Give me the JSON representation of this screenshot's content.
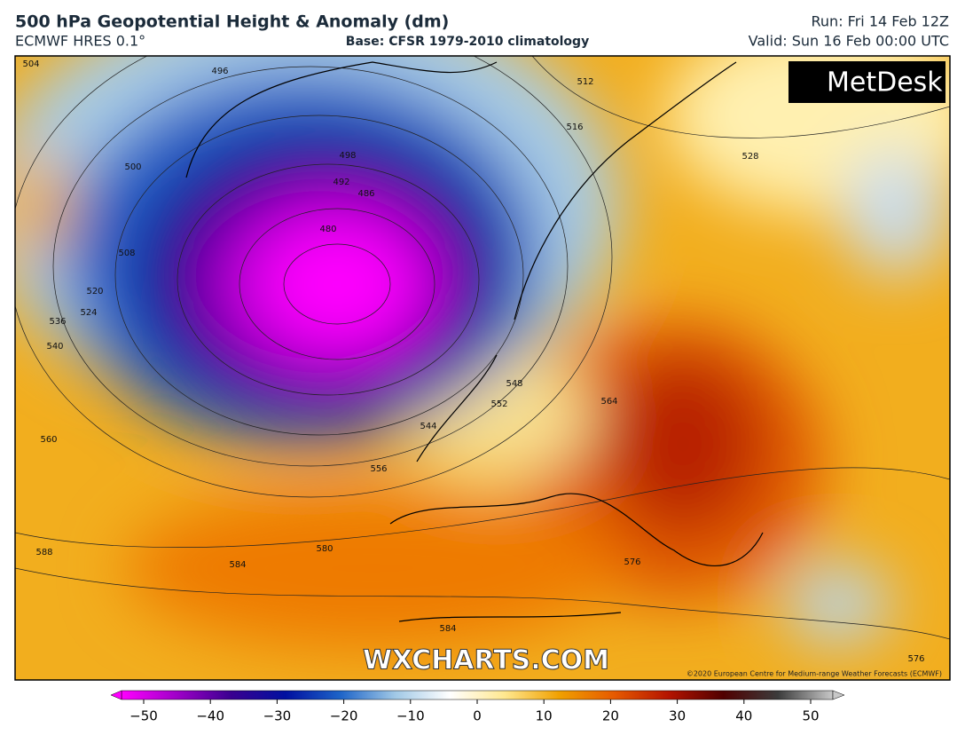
{
  "header": {
    "title": "500 hPa Geopotential Height & Anomaly (dm)",
    "model": "ECMWF HRES 0.1°",
    "base": "Base: CFSR 1979-2010 climatology",
    "run": "Run: Fri 14 Feb 12Z",
    "valid": "Valid: Sun 16 Feb 00:00 UTC"
  },
  "map": {
    "logo": "MetDesk",
    "watermark": "WXCHARTS.COM",
    "copyright": "©2020 European Centre for Medium-range Weather Forecasts (ECMWF)",
    "contour_labels": [
      "504",
      "496",
      "512",
      "516",
      "528",
      "500",
      "498",
      "492",
      "486",
      "480",
      "508",
      "520",
      "524",
      "536",
      "540",
      "548",
      "552",
      "544",
      "564",
      "560",
      "556",
      "588",
      "580",
      "584",
      "576",
      "584",
      "576"
    ]
  },
  "colorbar": {
    "lim": [
      -50,
      50
    ],
    "colors": [
      "#ff00ff",
      "#a000c8",
      "#3a0090",
      "#0010a0",
      "#1e64c8",
      "#a0c8e6",
      "#ffffff",
      "#ffe890",
      "#f0a000",
      "#e65a00",
      "#b41400",
      "#500000",
      "#3c3c3c",
      "#c8c8c8"
    ],
    "ticks": [
      {
        "value": -50,
        "label": "−50"
      },
      {
        "value": -40,
        "label": "−40"
      },
      {
        "value": -30,
        "label": "−30"
      },
      {
        "value": -20,
        "label": "−20"
      },
      {
        "value": -10,
        "label": "−10"
      },
      0,
      10,
      20,
      30,
      40,
      50
    ]
  }
}
